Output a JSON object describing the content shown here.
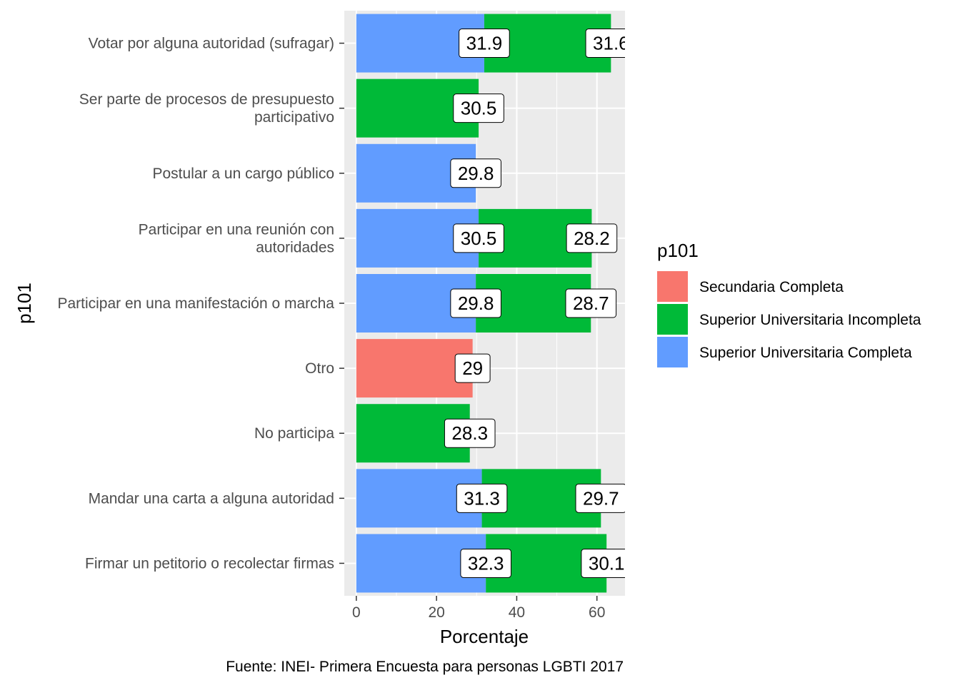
{
  "chart_data": {
    "type": "bar",
    "orientation": "horizontal",
    "stacked": true,
    "categories": [
      "Votar por alguna autoridad (sufragar)",
      "Ser parte de procesos de presupuesto\nparticipativo",
      "Postular a un cargo público",
      "Participar en una reunión con\nautoridades",
      "Participar en una manifestación o marcha",
      "Otro",
      "No participa",
      "Mandar una carta a alguna autoridad",
      "Firmar un petitorio o recolectar firmas"
    ],
    "series": [
      {
        "name": "Secundaria Completa",
        "color": "#F8766D",
        "values": [
          null,
          null,
          null,
          null,
          null,
          29,
          null,
          null,
          null
        ],
        "labels": [
          "",
          "",
          "",
          "",
          "",
          "29",
          "",
          "",
          ""
        ]
      },
      {
        "name": "Superior Universitaria Incompleta",
        "color": "#00BA38",
        "values": [
          31.6,
          30.5,
          null,
          28.2,
          28.7,
          null,
          28.3,
          29.7,
          30.1
        ],
        "labels": [
          "31.6",
          "30.5",
          "",
          "28.2",
          "28.7",
          "",
          "28.3",
          "29.7",
          "30.1"
        ]
      },
      {
        "name": "Superior Universitaria Completa",
        "color": "#619CFF",
        "values": [
          31.9,
          null,
          29.8,
          30.5,
          29.8,
          null,
          null,
          31.3,
          32.3
        ],
        "labels": [
          "31.9",
          "",
          "29.8",
          "30.5",
          "29.8",
          "",
          "",
          "31.3",
          "32.3"
        ]
      }
    ],
    "stack_order": [
      "Superior Universitaria Completa",
      "Superior Universitaria Incompleta",
      "Secundaria Completa"
    ],
    "xlabel": "Porcentaje",
    "ylabel": "p101",
    "xlim": [
      -3,
      67
    ],
    "xticks": [
      0,
      20,
      40,
      60
    ],
    "grid": true,
    "legend": {
      "title": "p101",
      "position": "right",
      "entries": [
        {
          "label": "Secundaria Completa",
          "color": "#F8766D"
        },
        {
          "label": "Superior Universitaria Incompleta",
          "color": "#00BA38"
        },
        {
          "label": "Superior Universitaria Completa",
          "color": "#619CFF"
        }
      ]
    },
    "caption": "Fuente: INEI- Primera Encuesta para personas LGBTI 2017"
  }
}
